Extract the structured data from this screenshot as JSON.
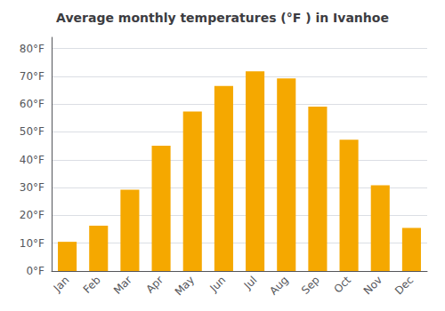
{
  "chart_data": {
    "type": "bar",
    "title": "Average monthly temperatures (°F ) in Ivanhoe",
    "categories": [
      "Jan",
      "Feb",
      "Mar",
      "Apr",
      "May",
      "Jun",
      "Jul",
      "Aug",
      "Sep",
      "Oct",
      "Nov",
      "Dec"
    ],
    "values": [
      10.5,
      16.3,
      29.2,
      45.0,
      57.3,
      66.5,
      71.8,
      69.2,
      59.1,
      47.2,
      30.8,
      15.5
    ],
    "color": "#F5A800",
    "ylim": [
      0,
      84
    ],
    "yticks": [
      {
        "value": 0,
        "label": "0°F"
      },
      {
        "value": 10,
        "label": "10°F"
      },
      {
        "value": 20,
        "label": "20°F"
      },
      {
        "value": 30,
        "label": "30°F"
      },
      {
        "value": 40,
        "label": "40°F"
      },
      {
        "value": 50,
        "label": "50°F"
      },
      {
        "value": 60,
        "label": "60°F"
      },
      {
        "value": 70,
        "label": "70°F"
      },
      {
        "value": 80,
        "label": "80°F"
      }
    ],
    "grid": true
  }
}
